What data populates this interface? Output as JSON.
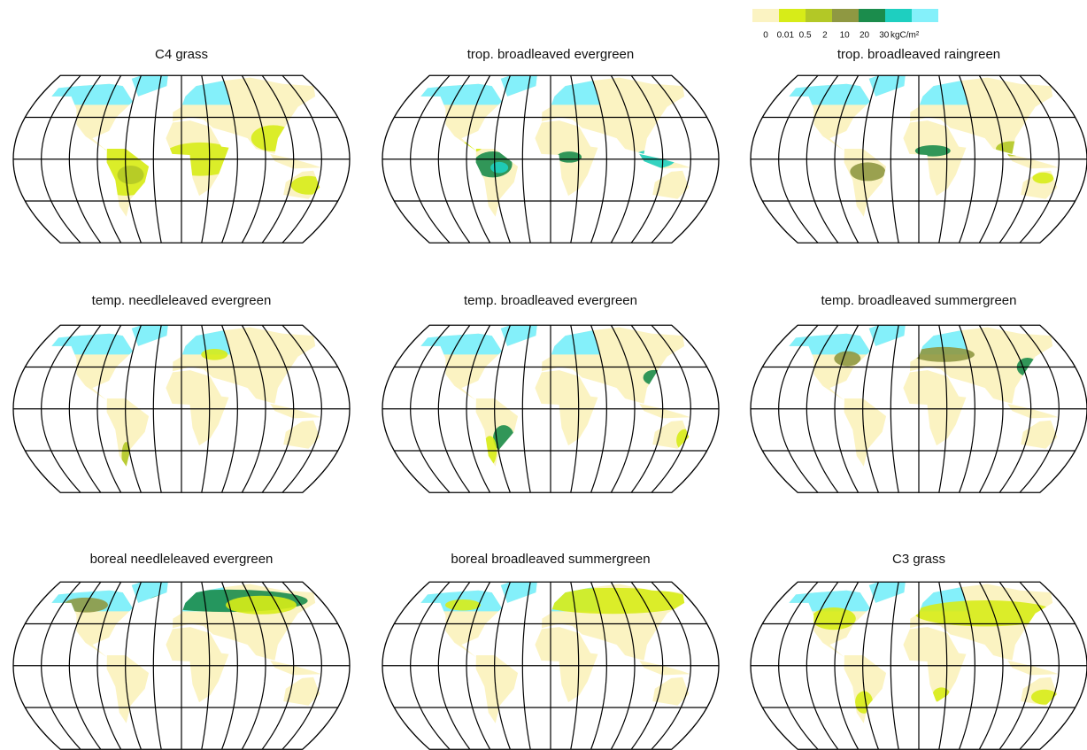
{
  "legend": {
    "colors": [
      "#fbf3c2",
      "#d7ec18",
      "#b3c826",
      "#8f9842",
      "#1b8c4c",
      "#1ecfc0",
      "#84f0fa"
    ],
    "labels": [
      "0",
      "0.01",
      "0.5",
      "2",
      "10",
      "20",
      "30"
    ],
    "unit": "kgC/m²"
  },
  "panels": [
    {
      "title": "C4 grass"
    },
    {
      "title": "trop. broadleaved evergreen"
    },
    {
      "title": "trop. broadleaved raingreen"
    },
    {
      "title": "temp. needleleaved evergreen"
    },
    {
      "title": "temp. broadleaved evergreen"
    },
    {
      "title": "temp. broadleaved summergreen"
    },
    {
      "title": "boreal needleleaved evergreen"
    },
    {
      "title": "boreal broadleaved summergreen"
    },
    {
      "title": "C3 grass"
    }
  ]
}
